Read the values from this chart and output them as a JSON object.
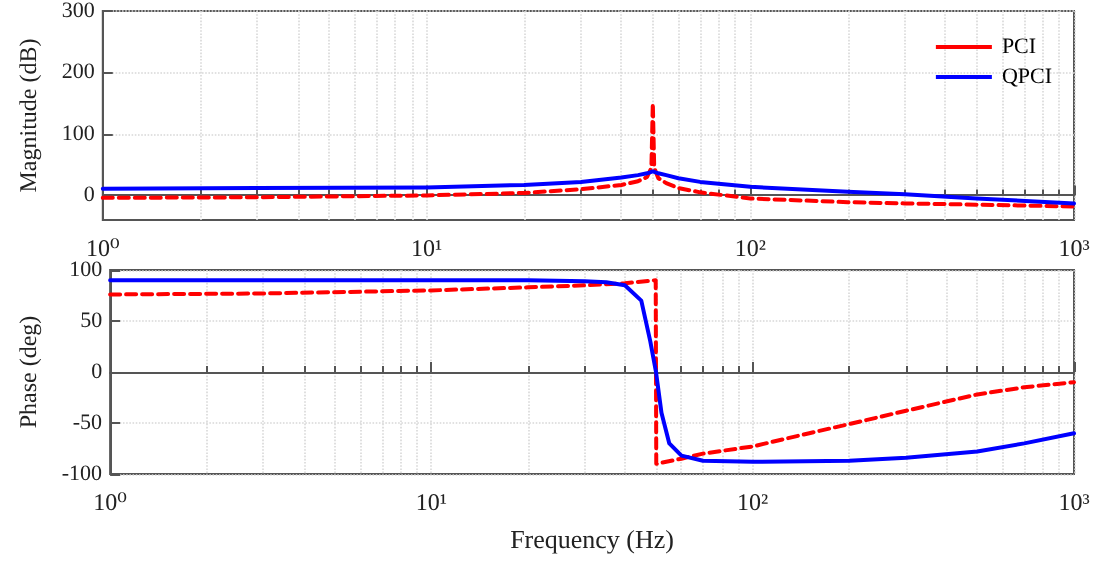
{
  "chart_data": [
    {
      "type": "line",
      "ylabel": "Magnitude (dB)",
      "log": "x",
      "xlim": [
        1,
        1000
      ],
      "xticks": [
        {
          "value": 1,
          "label": "10⁰"
        },
        {
          "value": 10,
          "label": "10¹"
        },
        {
          "value": 100,
          "label": "10²"
        },
        {
          "value": 1000,
          "label": "10³"
        }
      ],
      "ylim": [
        -40,
        300
      ],
      "yticks": [
        0,
        100,
        200,
        300
      ],
      "grid": true,
      "legend": "top right",
      "marker": "none",
      "series": [
        {
          "name": "PCI",
          "color": "#ff0000",
          "line_style": "dashed",
          "x": [
            1,
            3,
            10,
            20,
            30,
            40,
            45,
            48,
            49.5,
            50,
            50.5,
            52,
            55,
            60,
            70,
            100,
            200,
            300,
            500,
            1000
          ],
          "values": [
            -4,
            -3,
            0,
            4,
            10,
            17,
            23,
            30,
            45,
            150,
            45,
            28,
            20,
            12,
            5,
            -5,
            -11,
            -13,
            -15,
            -18
          ]
        },
        {
          "name": "QPCI",
          "color": "#0000ff",
          "line_style": "solid",
          "x": [
            1,
            3,
            10,
            20,
            30,
            40,
            45,
            48,
            50,
            52,
            55,
            60,
            70,
            100,
            200,
            300,
            500,
            1000
          ],
          "values": [
            11,
            12,
            13,
            17,
            22,
            29,
            33,
            36,
            39,
            36,
            33,
            28,
            22,
            14,
            6,
            2,
            -5,
            -13
          ]
        }
      ]
    },
    {
      "type": "line",
      "xlabel": "Frequency (Hz)",
      "ylabel": "Phase (deg)",
      "log": "x",
      "xlim": [
        1,
        1000
      ],
      "xticks": [
        {
          "value": 1,
          "label": "10⁰"
        },
        {
          "value": 10,
          "label": "10¹"
        },
        {
          "value": 100,
          "label": "10²"
        },
        {
          "value": 1000,
          "label": "10³"
        }
      ],
      "ylim": [
        -100,
        100
      ],
      "yticks": [
        -100,
        -50,
        0,
        50,
        100
      ],
      "grid": true,
      "marker": "none",
      "series": [
        {
          "color": "#ff0000",
          "line_style": "dashed",
          "x": [
            1,
            3,
            10,
            20,
            30,
            40,
            49.9,
            50.1,
            60,
            70,
            100,
            150,
            200,
            300,
            500,
            700,
            1000
          ],
          "values": [
            76,
            77,
            80,
            83,
            85,
            87,
            90,
            -90,
            -85,
            -80,
            -73,
            -60,
            -51,
            -38,
            -22,
            -15,
            -10
          ]
        },
        {
          "color": "#0000ff",
          "line_style": "solid",
          "x": [
            1,
            3,
            10,
            20,
            30,
            35,
            40,
            45,
            48,
            50,
            52,
            55,
            60,
            70,
            100,
            200,
            300,
            500,
            700,
            1000
          ],
          "values": [
            90,
            90,
            90,
            90,
            89,
            88,
            85,
            70,
            30,
            0,
            -40,
            -70,
            -82,
            -87,
            -88,
            -87,
            -84,
            -78,
            -70,
            -60
          ]
        }
      ]
    }
  ]
}
